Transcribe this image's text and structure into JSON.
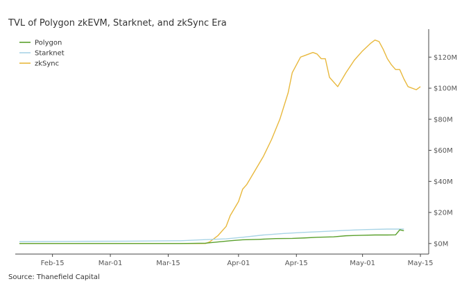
{
  "title": "TVL of Polygon zkEVM, Starknet, and zkSync Era",
  "source": "Source: Thanefield Capital",
  "chart_data": {
    "type": "line",
    "title": "TVL of Polygon zkEVM, Starknet, and zkSync Era",
    "xlabel": "",
    "ylabel": "",
    "x_ticks": [
      "Feb-15",
      "Mar-01",
      "Mar-15",
      "Apr-01",
      "Apr-15",
      "May-01",
      "May-15"
    ],
    "y_ticks": [
      "$0M",
      "$20M",
      "$40M",
      "$60M",
      "$80M",
      "$100M",
      "$120M"
    ],
    "xlim": [
      "2023-02-06",
      "2023-05-17"
    ],
    "ylim": [
      -5,
      138
    ],
    "y_axis_side": "right",
    "grid": false,
    "legend_position": "top-left",
    "series": [
      {
        "name": "Polygon",
        "color": "#5aa02c",
        "points": [
          [
            "2023-02-07",
            0
          ],
          [
            "2023-02-20",
            0
          ],
          [
            "2023-03-05",
            0
          ],
          [
            "2023-03-18",
            0
          ],
          [
            "2023-03-24",
            0.2
          ],
          [
            "2023-03-27",
            1
          ],
          [
            "2023-03-30",
            1.8
          ],
          [
            "2023-04-02",
            2.4
          ],
          [
            "2023-04-06",
            2.7
          ],
          [
            "2023-04-10",
            3.2
          ],
          [
            "2023-04-14",
            3.3
          ],
          [
            "2023-04-17",
            3.6
          ],
          [
            "2023-04-20",
            4.0
          ],
          [
            "2023-04-24",
            4.3
          ],
          [
            "2023-04-27",
            5.0
          ],
          [
            "2023-05-01",
            5.3
          ],
          [
            "2023-05-04",
            5.5
          ],
          [
            "2023-05-07",
            5.5
          ],
          [
            "2023-05-09",
            5.6
          ],
          [
            "2023-05-10",
            8.8
          ],
          [
            "2023-05-11",
            8.2
          ]
        ]
      },
      {
        "name": "Starknet",
        "color": "#a8d4e6",
        "points": [
          [
            "2023-02-07",
            1.2
          ],
          [
            "2023-02-20",
            1.4
          ],
          [
            "2023-03-05",
            1.5
          ],
          [
            "2023-03-18",
            1.8
          ],
          [
            "2023-03-24",
            2.5
          ],
          [
            "2023-03-29",
            3.0
          ],
          [
            "2023-04-02",
            4.0
          ],
          [
            "2023-04-07",
            5.5
          ],
          [
            "2023-04-12",
            6.5
          ],
          [
            "2023-04-17",
            7.2
          ],
          [
            "2023-04-22",
            7.8
          ],
          [
            "2023-04-27",
            8.5
          ],
          [
            "2023-05-02",
            9.0
          ],
          [
            "2023-05-07",
            9.3
          ],
          [
            "2023-05-11",
            9.3
          ]
        ]
      },
      {
        "name": "zkSync",
        "color": "#e8b83c",
        "points": [
          [
            "2023-02-07",
            0
          ],
          [
            "2023-02-20",
            0
          ],
          [
            "2023-03-05",
            0
          ],
          [
            "2023-03-18",
            0
          ],
          [
            "2023-03-24",
            0
          ],
          [
            "2023-03-25",
            1
          ],
          [
            "2023-03-27",
            5
          ],
          [
            "2023-03-29",
            11
          ],
          [
            "2023-03-30",
            18
          ],
          [
            "2023-04-01",
            27
          ],
          [
            "2023-04-02",
            35
          ],
          [
            "2023-04-03",
            38
          ],
          [
            "2023-04-05",
            47
          ],
          [
            "2023-04-07",
            56
          ],
          [
            "2023-04-09",
            67
          ],
          [
            "2023-04-11",
            80
          ],
          [
            "2023-04-13",
            97
          ],
          [
            "2023-04-14",
            110
          ],
          [
            "2023-04-16",
            120
          ],
          [
            "2023-04-17",
            121
          ],
          [
            "2023-04-19",
            123
          ],
          [
            "2023-04-20",
            122
          ],
          [
            "2023-04-21",
            119
          ],
          [
            "2023-04-22",
            119
          ],
          [
            "2023-04-23",
            107
          ],
          [
            "2023-04-25",
            101
          ],
          [
            "2023-04-27",
            110
          ],
          [
            "2023-04-29",
            118
          ],
          [
            "2023-05-01",
            124
          ],
          [
            "2023-05-03",
            129
          ],
          [
            "2023-05-04",
            131
          ],
          [
            "2023-05-05",
            130
          ],
          [
            "2023-05-06",
            125
          ],
          [
            "2023-05-07",
            119
          ],
          [
            "2023-05-08",
            115
          ],
          [
            "2023-05-09",
            112
          ],
          [
            "2023-05-10",
            112
          ],
          [
            "2023-05-11",
            106
          ],
          [
            "2023-05-12",
            101
          ],
          [
            "2023-05-14",
            99
          ],
          [
            "2023-05-15",
            101
          ]
        ]
      }
    ]
  }
}
